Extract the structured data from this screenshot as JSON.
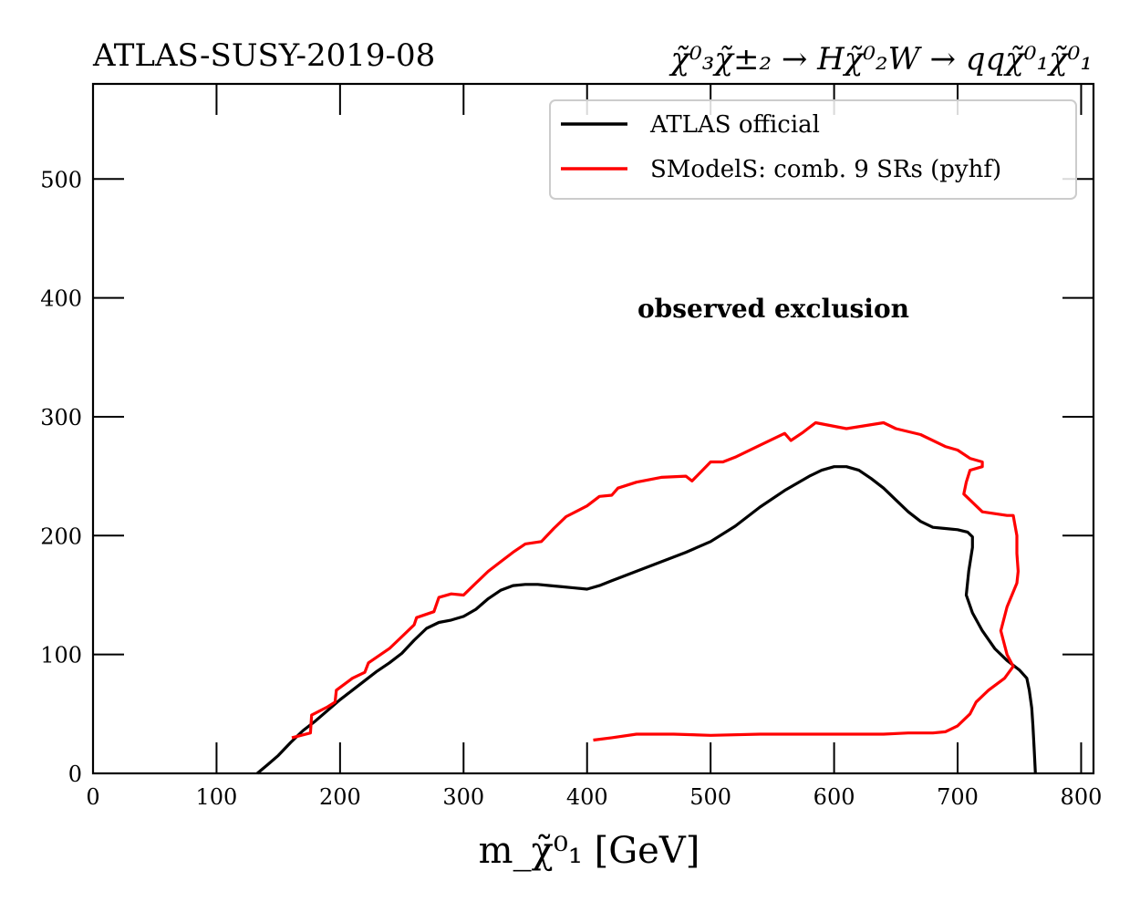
{
  "chart_data": {
    "type": "line",
    "title_left": "ATLAS-SUSY-2019-08",
    "title_right": "χ̃⁰₃χ̃±₂ → Hχ̃⁰₂W → qqχ̃⁰₁χ̃⁰₁",
    "xlabel": "m_χ̃⁰₁ [GeV]",
    "ylabel": "",
    "xlim": [
      0,
      810
    ],
    "ylim": [
      0,
      580
    ],
    "xticks": [
      0,
      100,
      200,
      300,
      400,
      500,
      600,
      700,
      800
    ],
    "yticks": [
      0,
      100,
      200,
      300,
      400,
      500
    ],
    "grid": false,
    "legend_position": "top-right",
    "annotation": "observed exclusion",
    "series": [
      {
        "name": "ATLAS official",
        "color": "#000000",
        "points": [
          [
            133,
            0
          ],
          [
            141,
            7
          ],
          [
            150,
            15
          ],
          [
            160,
            26
          ],
          [
            170,
            36
          ],
          [
            180,
            44
          ],
          [
            190,
            53
          ],
          [
            200,
            62
          ],
          [
            210,
            70
          ],
          [
            220,
            78
          ],
          [
            230,
            86
          ],
          [
            240,
            93
          ],
          [
            250,
            101
          ],
          [
            260,
            112
          ],
          [
            270,
            122
          ],
          [
            280,
            127
          ],
          [
            290,
            129
          ],
          [
            300,
            132
          ],
          [
            310,
            138
          ],
          [
            320,
            147
          ],
          [
            330,
            154
          ],
          [
            340,
            158
          ],
          [
            350,
            159
          ],
          [
            360,
            159
          ],
          [
            370,
            158
          ],
          [
            380,
            157
          ],
          [
            390,
            156
          ],
          [
            400,
            155
          ],
          [
            410,
            158
          ],
          [
            420,
            162
          ],
          [
            440,
            170
          ],
          [
            460,
            178
          ],
          [
            480,
            186
          ],
          [
            500,
            195
          ],
          [
            520,
            208
          ],
          [
            540,
            224
          ],
          [
            560,
            238
          ],
          [
            580,
            250
          ],
          [
            590,
            255
          ],
          [
            600,
            258
          ],
          [
            610,
            258
          ],
          [
            620,
            255
          ],
          [
            630,
            248
          ],
          [
            640,
            240
          ],
          [
            650,
            230
          ],
          [
            660,
            220
          ],
          [
            670,
            212
          ],
          [
            680,
            207
          ],
          [
            690,
            206
          ],
          [
            700,
            205
          ],
          [
            708,
            203
          ],
          [
            712,
            199
          ],
          [
            712,
            190
          ],
          [
            709,
            170
          ],
          [
            707,
            150
          ],
          [
            712,
            135
          ],
          [
            720,
            120
          ],
          [
            730,
            105
          ],
          [
            740,
            95
          ],
          [
            750,
            87
          ],
          [
            756,
            80
          ],
          [
            758,
            70
          ],
          [
            760,
            55
          ],
          [
            761,
            40
          ],
          [
            762,
            20
          ],
          [
            763,
            0
          ]
        ]
      },
      {
        "name": "SModelS: comb. 9 SRs (pyhf)",
        "color": "#ff0000",
        "points": [
          [
            161,
            30
          ],
          [
            176,
            34
          ],
          [
            177,
            49
          ],
          [
            190,
            56
          ],
          [
            196,
            60
          ],
          [
            197,
            70
          ],
          [
            210,
            80
          ],
          [
            220,
            85
          ],
          [
            223,
            93
          ],
          [
            240,
            105
          ],
          [
            250,
            115
          ],
          [
            260,
            125
          ],
          [
            262,
            131
          ],
          [
            276,
            136
          ],
          [
            280,
            148
          ],
          [
            290,
            151
          ],
          [
            300,
            150
          ],
          [
            310,
            160
          ],
          [
            320,
            170
          ],
          [
            330,
            178
          ],
          [
            340,
            186
          ],
          [
            350,
            193
          ],
          [
            363,
            195
          ],
          [
            373,
            206
          ],
          [
            383,
            216
          ],
          [
            400,
            225
          ],
          [
            410,
            233
          ],
          [
            420,
            234
          ],
          [
            425,
            240
          ],
          [
            440,
            245
          ],
          [
            460,
            249
          ],
          [
            480,
            250
          ],
          [
            485,
            246
          ],
          [
            500,
            262
          ],
          [
            510,
            262
          ],
          [
            520,
            266
          ],
          [
            540,
            276
          ],
          [
            560,
            286
          ],
          [
            565,
            280
          ],
          [
            575,
            287
          ],
          [
            585,
            295
          ],
          [
            610,
            290
          ],
          [
            640,
            295
          ],
          [
            650,
            290
          ],
          [
            670,
            285
          ],
          [
            690,
            275
          ],
          [
            700,
            272
          ],
          [
            710,
            265
          ],
          [
            720,
            262
          ],
          [
            720,
            258
          ],
          [
            710,
            255
          ],
          [
            707,
            245
          ],
          [
            705,
            235
          ],
          [
            720,
            220
          ],
          [
            740,
            217
          ],
          [
            745,
            217
          ],
          [
            748,
            200
          ],
          [
            748,
            185
          ],
          [
            749,
            170
          ],
          [
            748,
            160
          ],
          [
            740,
            140
          ],
          [
            735,
            120
          ],
          [
            740,
            100
          ],
          [
            745,
            90
          ],
          [
            738,
            80
          ],
          [
            725,
            70
          ],
          [
            715,
            60
          ],
          [
            710,
            50
          ],
          [
            700,
            40
          ],
          [
            690,
            35
          ],
          [
            680,
            34
          ],
          [
            660,
            34
          ],
          [
            640,
            33
          ],
          [
            620,
            33
          ],
          [
            580,
            33
          ],
          [
            540,
            33
          ],
          [
            500,
            32
          ],
          [
            470,
            33
          ],
          [
            440,
            33
          ],
          [
            420,
            30
          ],
          [
            405,
            28
          ]
        ]
      }
    ]
  }
}
